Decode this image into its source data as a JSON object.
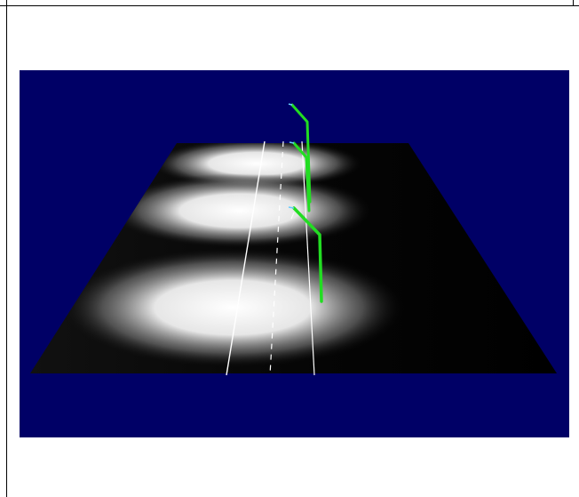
{
  "scene": {
    "background_color": "#000066",
    "ground_color": "#000000",
    "spotlight_color": "#ffffff",
    "lane_line_color": "#ffffff",
    "marker_color": "#22dd22",
    "spotlight_count": 3,
    "marker_count": 3,
    "icon": "3d-road-scene"
  }
}
